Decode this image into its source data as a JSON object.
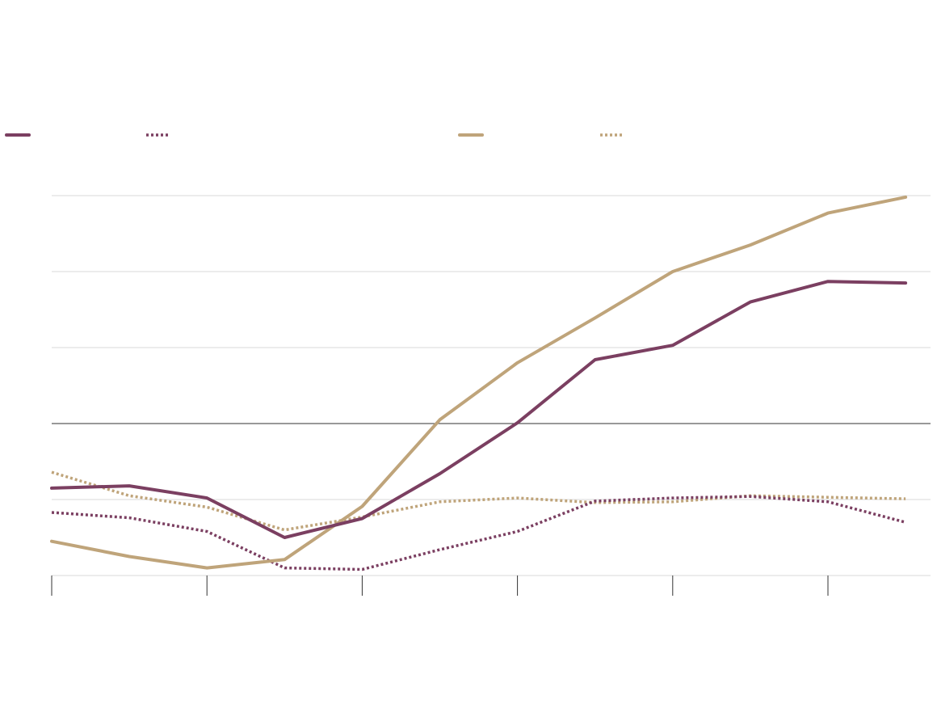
{
  "chart_data": {
    "type": "line",
    "title": "",
    "xlabel": "",
    "ylabel": "",
    "grid": true,
    "legend": "top",
    "colors": {
      "plum": "#7b3f61",
      "tan": "#bfa47a",
      "grid": "#d9d9d9",
      "baseline": "#333333"
    },
    "x": [
      0,
      1,
      2,
      3,
      4,
      5,
      6,
      7,
      8,
      9,
      10,
      11
    ],
    "ylim": [
      -2,
      3
    ],
    "y_baseline": 0,
    "y_gridlines": [
      -2,
      -1,
      0,
      1,
      2,
      3
    ],
    "x_ticks": [
      0,
      2,
      4,
      6,
      8,
      10
    ],
    "series": [
      {
        "id": "plum_solid",
        "style": "solid",
        "color": "#7b3f61",
        "values": [
          -0.85,
          -0.82,
          -0.98,
          -1.5,
          -1.25,
          -0.66,
          0.01,
          0.84,
          1.03,
          1.6,
          1.87,
          1.85
        ]
      },
      {
        "id": "plum_dotted",
        "style": "dotted",
        "color": "#7b3f61",
        "values": [
          -1.17,
          -1.24,
          -1.42,
          -1.9,
          -1.92,
          -1.66,
          -1.42,
          -1.02,
          -0.98,
          -0.96,
          -1.03,
          -1.3
        ]
      },
      {
        "id": "tan_solid",
        "style": "solid",
        "color": "#bfa47a",
        "values": [
          -1.55,
          -1.75,
          -1.9,
          -1.79,
          -1.09,
          0.05,
          0.8,
          1.39,
          2.0,
          2.35,
          2.77,
          2.98
        ]
      },
      {
        "id": "tan_dotted",
        "style": "dotted",
        "color": "#bfa47a",
        "values": [
          -0.64,
          -0.95,
          -1.1,
          -1.4,
          -1.23,
          -1.03,
          -0.98,
          -1.04,
          -1.03,
          -0.95,
          -0.97,
          -0.99
        ]
      }
    ]
  }
}
